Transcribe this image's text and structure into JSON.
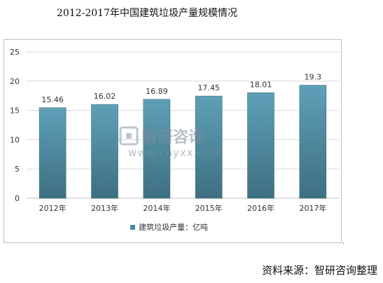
{
  "chart_data": {
    "type": "bar",
    "title": "2012-2017年中国建筑垃圾产量规模情况",
    "categories": [
      "2012年",
      "2013年",
      "2014年",
      "2015年",
      "2016年",
      "2017年"
    ],
    "series": [
      {
        "name": "建筑垃圾产量：亿吨",
        "values": [
          15.46,
          16.02,
          16.89,
          17.45,
          18.01,
          19.3
        ]
      }
    ],
    "value_labels": [
      "15.46",
      "16.02",
      "16.89",
      "17.45",
      "18.01",
      "19.3"
    ],
    "ylim": [
      0,
      25
    ],
    "yticks": [
      0,
      5,
      10,
      15,
      20,
      25
    ],
    "grid": true,
    "legend_position": "bottom",
    "bar_color": "#4a8aa0",
    "bar_top_color": "#5ea0b8",
    "bar_bottom_color": "#3e6f82",
    "xlabel": "",
    "ylabel": ""
  },
  "watermark": {
    "text": "智研咨询",
    "url": "www.chyxx.com"
  },
  "source_text": "资料来源：智研咨询整理"
}
